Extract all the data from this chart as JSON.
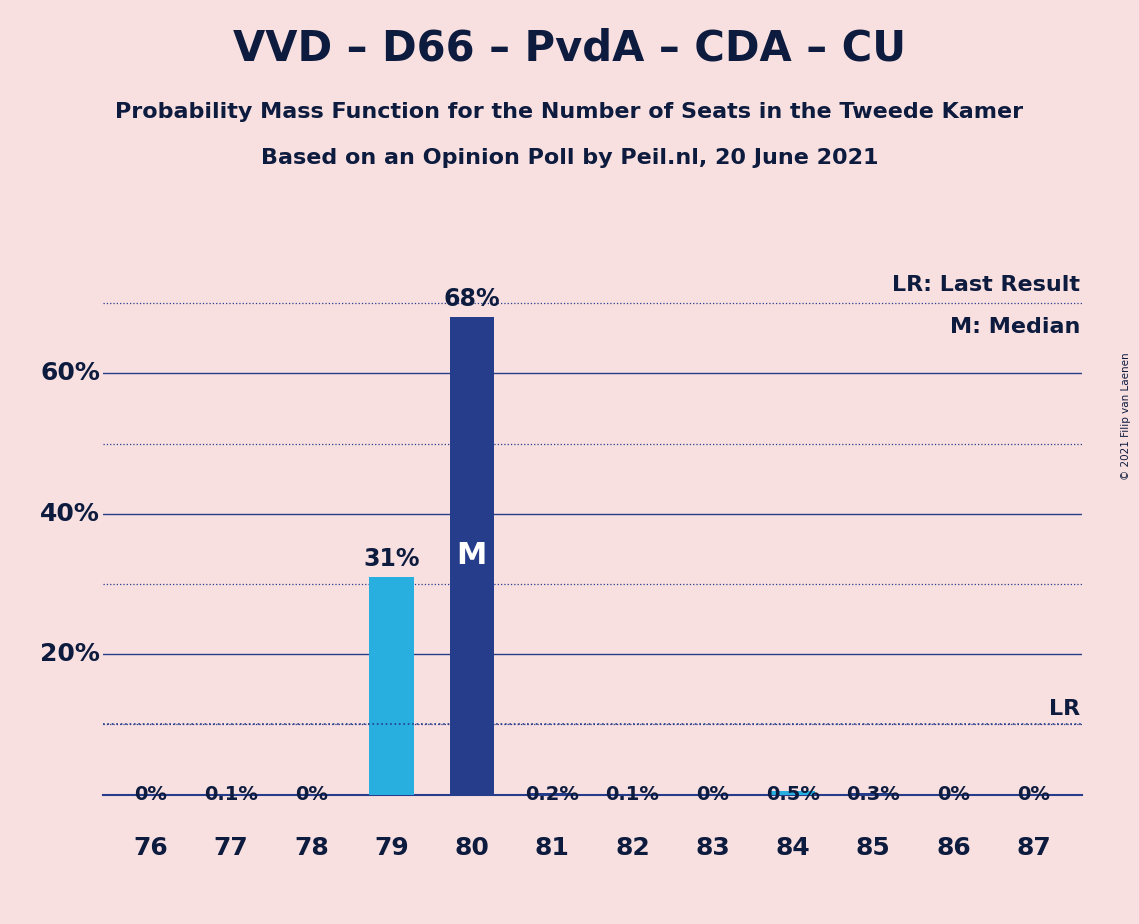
{
  "title": "VVD – D66 – PvdA – CDA – CU",
  "subtitle1": "Probability Mass Function for the Number of Seats in the Tweede Kamer",
  "subtitle2": "Based on an Opinion Poll by Peil.nl, 20 June 2021",
  "copyright": "© 2021 Filip van Laenen",
  "categories": [
    76,
    77,
    78,
    79,
    80,
    81,
    82,
    83,
    84,
    85,
    86,
    87
  ],
  "values": [
    0.0,
    0.1,
    0.0,
    31.0,
    68.0,
    0.2,
    0.1,
    0.0,
    0.5,
    0.3,
    0.0,
    0.0
  ],
  "labels": [
    "0%",
    "0.1%",
    "0%",
    "31%",
    "68%",
    "0.2%",
    "0.1%",
    "0%",
    "0.5%",
    "0.3%",
    "0%",
    "0%"
  ],
  "bar_colors": [
    "#253d8a",
    "#253d8a",
    "#253d8a",
    "#29aee0",
    "#253d8a",
    "#253d8a",
    "#253d8a",
    "#253d8a",
    "#29aee0",
    "#253d8a",
    "#253d8a",
    "#253d8a"
  ],
  "median_bar_index": 4,
  "median_label": "M",
  "lr_value": 10.0,
  "lr_label": "LR",
  "background_color": "#f9e0e0",
  "grid_color": "#253d8a",
  "text_color": "#0d1b3e",
  "legend_text1": "LR: Last Result",
  "legend_text2": "M: Median",
  "ylim_max": 75,
  "solid_gridlines": [
    20,
    40,
    60
  ],
  "dotted_gridlines": [
    10,
    30,
    50,
    70
  ],
  "title_fontsize": 30,
  "subtitle_fontsize": 16,
  "label_fontsize": 15,
  "tick_fontsize": 18
}
